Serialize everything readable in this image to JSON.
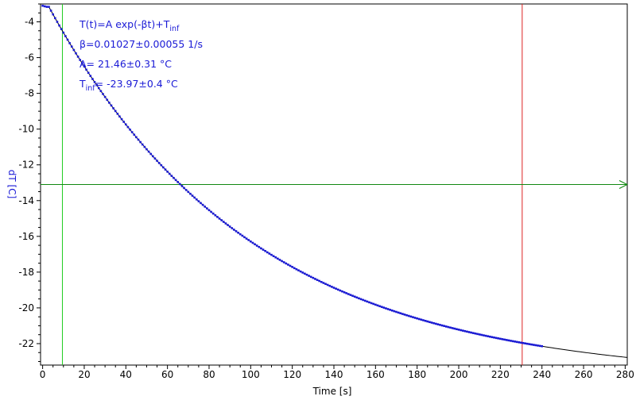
{
  "chart_data": {
    "type": "scatter",
    "xlabel": "Time [s]",
    "ylabel": "dT [C]",
    "xlim": [
      -1,
      281
    ],
    "ylim": [
      -23.2,
      -3.0
    ],
    "x_ticks": [
      0,
      20,
      40,
      60,
      80,
      100,
      120,
      140,
      160,
      180,
      200,
      220,
      240,
      260,
      280
    ],
    "y_ticks": [
      -22,
      -20,
      -18,
      -16,
      -14,
      -12,
      -10,
      -8,
      -6,
      -4
    ],
    "grid": false,
    "fit": {
      "model": "exp",
      "A": 21.46,
      "beta": 0.01027,
      "T_inf": -23.97,
      "x_range": [
        3,
        281
      ]
    },
    "series": [
      {
        "color": "#1a1ad6",
        "x_range": [
          0,
          240
        ],
        "x_step": 1
      }
    ],
    "reference_lines": {
      "vertical": [
        {
          "x": 9.5,
          "color": "#22cc22"
        },
        {
          "x": 230.5,
          "color": "#dd2222"
        }
      ],
      "horizontal": [
        {
          "y": -13.1,
          "color": "#118811",
          "arrow": true
        }
      ]
    },
    "annotations": [
      {
        "text": "T(t)=A exp(-βt)+T",
        "sub": "inf"
      },
      {
        "text": "β=0.01027±0.00055 1/s"
      },
      {
        "text": "A= 21.46±0.31 °C"
      },
      {
        "text": "T",
        "sub": "inf",
        "tail": "= -23.97±0.4 °C"
      }
    ]
  }
}
